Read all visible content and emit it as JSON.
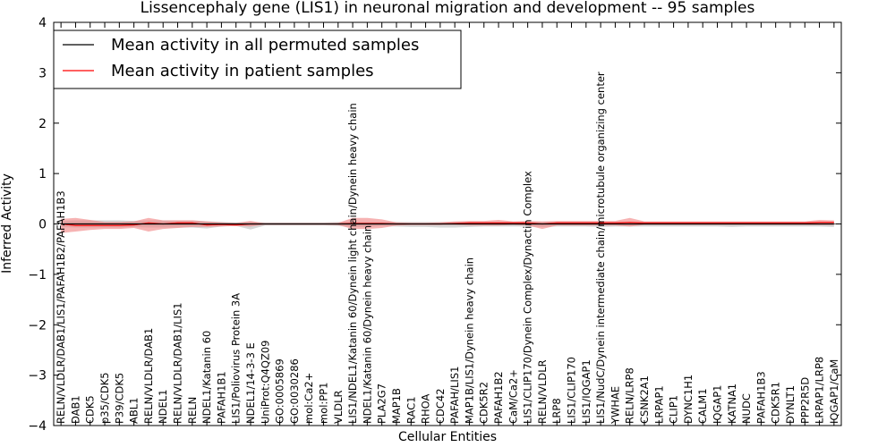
{
  "chart_data": {
    "type": "line",
    "title": "Lissencephaly gene (LIS1) in neuronal migration and development -- 95 samples",
    "xlabel": "Cellular Entities",
    "ylabel": "Inferred Activity",
    "ylim": [
      -4,
      4
    ],
    "yticks": [
      "−4",
      "−3",
      "−2",
      "−1",
      "0",
      "1",
      "2",
      "3",
      "4"
    ],
    "grid": false,
    "legend_position": "top-left",
    "colors": {
      "permuted": "#000000",
      "patient": "#ff0000",
      "permuted_band": "#c8c8c8",
      "patient_band": "#f08080"
    },
    "categories": [
      "RELN/VLDLR/DAB1/LIS1/PAFAH1B2/PAFAH1B3",
      "DAB1",
      "CDK5",
      "p35/CDK5",
      "P39/CDK5",
      "ABL1",
      "RELN/VLDLR/DAB1",
      "NDEL1",
      "RELN/VLDLR/DAB1/LIS1",
      "RELN",
      "NDEL1/Katanin 60",
      "PAFAH1B1",
      "LIS1/Poliovirus Protein 3A",
      "NDEL1/14-3-3 E",
      "UniProt:Q4QZ09",
      "GO:0005869",
      "GO:0030286",
      "mol:Ca2+",
      "mol:PP1",
      "VLDLR",
      "LIS1/NDEL1/Katanin 60/Dynein light chain/Dynein heavy chain",
      "NDEL1/Katanin 60/Dynein heavy chain",
      "PLA2G7",
      "MAP1B",
      "RAC1",
      "RHOA",
      "CDC42",
      "PAFAH/LIS1",
      "MAP1B/LIS1/Dynein heavy chain",
      "CDK5R2",
      "PAFAH1B2",
      "CaM/Ca2+",
      "LIS1/CLIP170/Dynein Complex/Dynactin Complex",
      "RELN/VLDLR",
      "LRP8",
      "LIS1/CLIP170",
      "LIS1/IQGAP1",
      "LIS1/NudC/Dynein intermediate chain/microtubule organizing center",
      "YWHAE",
      "RELN/LRP8",
      "CSNK2A1",
      "LRPAP1",
      "CLIP1",
      "DYNC1H1",
      "CALM1",
      "IQGAP1",
      "KATNA1",
      "NUDC",
      "PAFAH1B3",
      "CDK5R1",
      "DYNLT1",
      "PPP2R5D",
      "LRPAP1/LRP8",
      "IQGAP1/CaM"
    ],
    "series": [
      {
        "name": "Mean activity in all permuted samples",
        "values": [
          0,
          0,
          0,
          0,
          0,
          0,
          0,
          0,
          0,
          0,
          0,
          0,
          0,
          0,
          0,
          0,
          0,
          0,
          0,
          0,
          0,
          0,
          0,
          0,
          0,
          0,
          0,
          0,
          0,
          0,
          0,
          0,
          0,
          0,
          0,
          0,
          0,
          0,
          0,
          0,
          0,
          0,
          0,
          0,
          0,
          0,
          0,
          0,
          0,
          0,
          0,
          0,
          0,
          0
        ],
        "band_lower": [
          -0.06,
          -0.07,
          -0.07,
          -0.07,
          -0.07,
          -0.06,
          -0.07,
          -0.07,
          -0.07,
          -0.07,
          -0.09,
          -0.05,
          -0.04,
          -0.11,
          -0.03,
          -0.03,
          -0.03,
          -0.03,
          -0.03,
          -0.04,
          -0.06,
          -0.06,
          -0.04,
          -0.05,
          -0.06,
          -0.06,
          -0.07,
          -0.07,
          -0.06,
          -0.05,
          -0.05,
          -0.05,
          -0.05,
          -0.06,
          -0.05,
          -0.05,
          -0.05,
          -0.06,
          -0.05,
          -0.05,
          -0.05,
          -0.05,
          -0.05,
          -0.05,
          -0.05,
          -0.05,
          -0.06,
          -0.05,
          -0.05,
          -0.05,
          -0.05,
          -0.05,
          -0.05,
          -0.06
        ],
        "band_upper": [
          0.06,
          0.07,
          0.07,
          0.07,
          0.07,
          0.06,
          0.07,
          0.07,
          0.07,
          0.07,
          0.05,
          0.04,
          0.03,
          0.04,
          0.03,
          0.03,
          0.03,
          0.03,
          0.03,
          0.04,
          0.04,
          0.04,
          0.04,
          0.04,
          0.04,
          0.04,
          0.04,
          0.04,
          0.04,
          0.04,
          0.04,
          0.04,
          0.04,
          0.04,
          0.04,
          0.04,
          0.04,
          0.04,
          0.04,
          0.04,
          0.04,
          0.04,
          0.04,
          0.04,
          0.04,
          0.04,
          0.04,
          0.04,
          0.04,
          0.04,
          0.04,
          0.04,
          0.04,
          0.04
        ]
      },
      {
        "name": "Mean activity in patient samples",
        "values": [
          0.0,
          -0.03,
          -0.03,
          -0.03,
          -0.03,
          -0.02,
          0.02,
          0.0,
          0.02,
          0.02,
          -0.02,
          -0.01,
          -0.02,
          0.0,
          0.0,
          0.0,
          0.0,
          0.0,
          0.0,
          0.0,
          0.01,
          0.01,
          0.01,
          0.0,
          0.0,
          0.0,
          0.0,
          0.01,
          0.02,
          0.02,
          0.02,
          0.02,
          0.02,
          0.0,
          0.02,
          0.02,
          0.02,
          0.02,
          0.02,
          0.03,
          0.02,
          0.02,
          0.02,
          0.02,
          0.02,
          0.02,
          0.02,
          0.02,
          0.02,
          0.02,
          0.02,
          0.02,
          0.03,
          0.03
        ],
        "band_lower": [
          -0.18,
          -0.15,
          -0.12,
          -0.1,
          -0.1,
          -0.08,
          -0.15,
          -0.1,
          -0.08,
          -0.06,
          -0.06,
          -0.05,
          -0.04,
          -0.05,
          -0.01,
          -0.01,
          -0.01,
          -0.01,
          -0.01,
          -0.02,
          -0.1,
          -0.1,
          -0.08,
          -0.03,
          -0.02,
          -0.02,
          -0.02,
          -0.02,
          -0.03,
          -0.03,
          -0.03,
          -0.02,
          -0.03,
          -0.1,
          -0.03,
          -0.03,
          -0.03,
          -0.03,
          -0.03,
          -0.05,
          -0.02,
          -0.02,
          -0.02,
          -0.02,
          -0.02,
          -0.02,
          -0.02,
          -0.02,
          -0.02,
          -0.02,
          -0.02,
          -0.02,
          -0.02,
          -0.02
        ],
        "band_upper": [
          0.1,
          0.12,
          0.08,
          0.04,
          0.04,
          0.05,
          0.12,
          0.07,
          0.07,
          0.07,
          0.05,
          0.03,
          0.02,
          0.06,
          0.01,
          0.01,
          0.01,
          0.01,
          0.01,
          0.02,
          0.12,
          0.12,
          0.09,
          0.03,
          0.02,
          0.02,
          0.03,
          0.05,
          0.06,
          0.06,
          0.08,
          0.05,
          0.06,
          0.05,
          0.06,
          0.06,
          0.06,
          0.06,
          0.06,
          0.12,
          0.05,
          0.05,
          0.05,
          0.05,
          0.05,
          0.05,
          0.05,
          0.05,
          0.05,
          0.05,
          0.05,
          0.05,
          0.08,
          0.07
        ]
      }
    ]
  }
}
